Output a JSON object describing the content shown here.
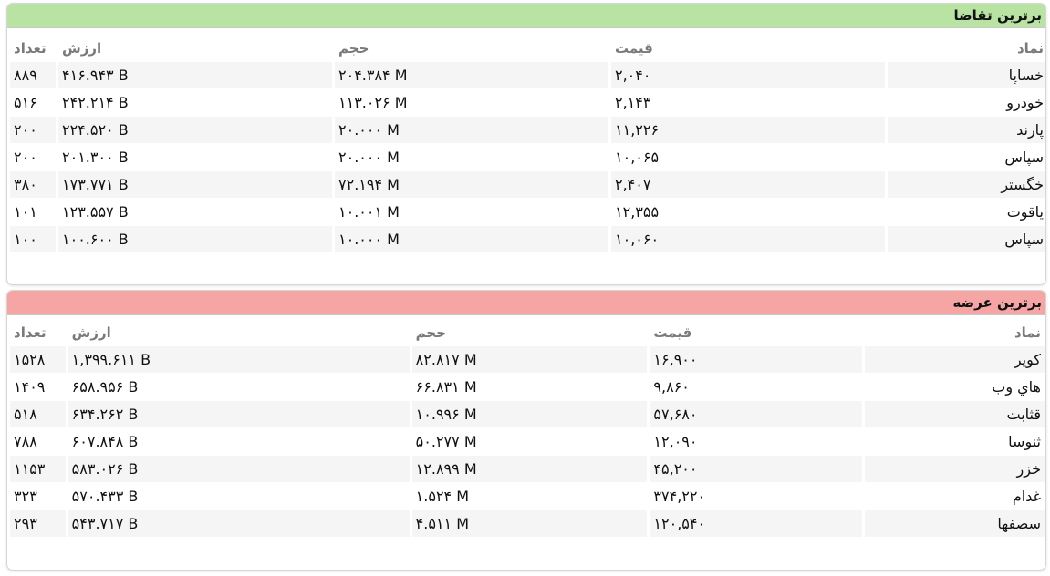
{
  "demand": {
    "title": "برترین تقاضا",
    "header_color": "#b9e3a3",
    "columns": {
      "symbol": "نماد",
      "price": "قیمت",
      "volume": "حجم",
      "value": "ارزش",
      "count": "تعداد"
    },
    "rows": [
      {
        "symbol": "خساپا",
        "price": "۲,۰۴۰",
        "volume": "۲۰۴.۳۸۴ M",
        "value": "۴۱۶.۹۴۳ B",
        "count": "۸۸۹"
      },
      {
        "symbol": "خودرو",
        "price": "۲,۱۴۳",
        "volume": "۱۱۳.۰۲۶ M",
        "value": "۲۴۲.۲۱۴ B",
        "count": "۵۱۶"
      },
      {
        "symbol": "پارند",
        "price": "۱۱,۲۲۶",
        "volume": "۲۰.۰۰۰ M",
        "value": "۲۲۴.۵۲۰ B",
        "count": "۲۰۰"
      },
      {
        "symbol": "سپاس",
        "price": "۱۰,۰۶۵",
        "volume": "۲۰.۰۰۰ M",
        "value": "۲۰۱.۳۰۰ B",
        "count": "۲۰۰"
      },
      {
        "symbol": "خگستر",
        "price": "۲,۴۰۷",
        "volume": "۷۲.۱۹۴ M",
        "value": "۱۷۳.۷۷۱ B",
        "count": "۳۸۰"
      },
      {
        "symbol": "یاقوت",
        "price": "۱۲,۳۵۵",
        "volume": "۱۰.۰۰۱ M",
        "value": "۱۲۳.۵۵۷ B",
        "count": "۱۰۱"
      },
      {
        "symbol": "سپاس",
        "price": "۱۰,۰۶۰",
        "volume": "۱۰.۰۰۰ M",
        "value": "۱۰۰.۶۰۰ B",
        "count": "۱۰۰"
      }
    ]
  },
  "supply": {
    "title": "برترین عرضه",
    "header_color": "#f6a5a5",
    "columns": {
      "symbol": "نماد",
      "price": "قیمت",
      "volume": "حجم",
      "value": "ارزش",
      "count": "تعداد"
    },
    "rows": [
      {
        "symbol": "کویر",
        "price": "۱۶,۹۰۰",
        "volume": "۸۲.۸۱۷ M",
        "value": "۱,۳۹۹.۶۱۱ B",
        "count": "۱۵۲۸"
      },
      {
        "symbol": "هاي وب",
        "price": "۹,۸۶۰",
        "volume": "۶۶.۸۳۱ M",
        "value": "۶۵۸.۹۵۶ B",
        "count": "۱۴۰۹"
      },
      {
        "symbol": "قثابت",
        "price": "۵۷,۶۸۰",
        "volume": "۱۰.۹۹۶ M",
        "value": "۶۳۴.۲۶۲ B",
        "count": "۵۱۸"
      },
      {
        "symbol": "ثنوسا",
        "price": "۱۲,۰۹۰",
        "volume": "۵۰.۲۷۷ M",
        "value": "۶۰۷.۸۴۸ B",
        "count": "۷۸۸"
      },
      {
        "symbol": "خزر",
        "price": "۴۵,۲۰۰",
        "volume": "۱۲.۸۹۹ M",
        "value": "۵۸۳.۰۲۶ B",
        "count": "۱۱۵۳"
      },
      {
        "symbol": "غدام",
        "price": "۳۷۴,۲۲۰",
        "volume": "۱.۵۲۴ M",
        "value": "۵۷۰.۴۳۳ B",
        "count": "۳۲۳"
      },
      {
        "symbol": "سصفها",
        "price": "۱۲۰,۵۴۰",
        "volume": "۴.۵۱۱ M",
        "value": "۵۴۳.۷۱۷ B",
        "count": "۲۹۳"
      }
    ]
  }
}
